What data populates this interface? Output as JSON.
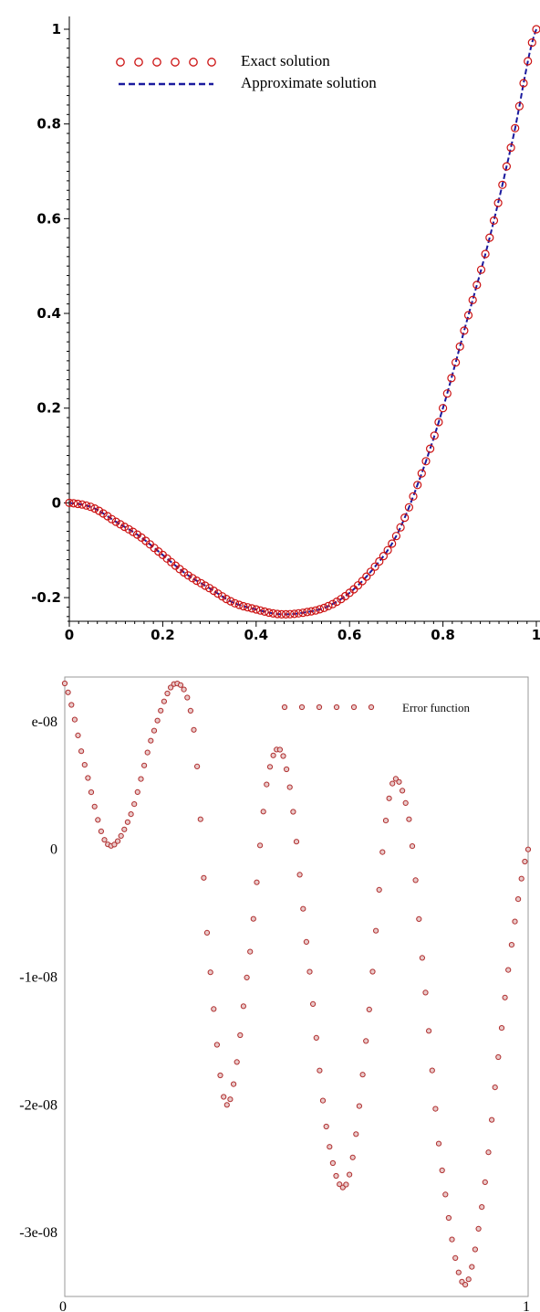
{
  "chart_data": [
    {
      "type": "line",
      "title": "",
      "xlabel": "",
      "ylabel": "",
      "xlim": [
        0,
        1
      ],
      "ylim": [
        -0.25,
        1
      ],
      "x_ticks": [
        "0",
        "0.2",
        "0.4",
        "0.6",
        "0.8",
        "1"
      ],
      "y_ticks": [
        "-0.2",
        "0",
        "0.2",
        "0.4",
        "0.6",
        "0.8",
        "1"
      ],
      "grid": false,
      "legend": "top-left",
      "series": [
        {
          "name": "Exact solution",
          "style": "circles",
          "color": "#cc1111",
          "x": [
            0,
            0.05,
            0.1,
            0.15,
            0.2,
            0.25,
            0.3,
            0.35,
            0.4,
            0.45,
            0.5,
            0.55,
            0.6,
            0.65,
            0.7,
            0.75,
            0.8,
            0.85,
            0.9,
            0.95,
            1.0
          ],
          "y": [
            0,
            -0.01,
            -0.04,
            -0.07,
            -0.11,
            -0.15,
            -0.18,
            -0.21,
            -0.225,
            -0.235,
            -0.232,
            -0.22,
            -0.19,
            -0.14,
            -0.07,
            0.05,
            0.2,
            0.38,
            0.56,
            0.77,
            1.0
          ]
        },
        {
          "name": "Approximate solution",
          "style": "dashed",
          "color": "#1a1a9e",
          "x": [
            0,
            0.05,
            0.1,
            0.15,
            0.2,
            0.25,
            0.3,
            0.35,
            0.4,
            0.45,
            0.5,
            0.55,
            0.6,
            0.65,
            0.7,
            0.75,
            0.8,
            0.85,
            0.9,
            0.95,
            1.0
          ],
          "y": [
            0,
            -0.01,
            -0.04,
            -0.07,
            -0.11,
            -0.15,
            -0.18,
            -0.21,
            -0.225,
            -0.235,
            -0.232,
            -0.22,
            -0.19,
            -0.14,
            -0.07,
            0.05,
            0.2,
            0.38,
            0.56,
            0.77,
            1.0
          ]
        }
      ]
    },
    {
      "type": "scatter",
      "title": "",
      "xlabel": "",
      "ylabel": "",
      "xlim": [
        0,
        1
      ],
      "ylim": [
        -3.5e-08,
        1.35e-08
      ],
      "x_ticks": [
        "0",
        "1"
      ],
      "y_ticks": [
        "e-08",
        "0",
        "-1e-08",
        "-2e-08",
        "-3e-08"
      ],
      "grid": false,
      "legend": "top-right",
      "series": [
        {
          "name": "Error function",
          "style": "circles",
          "color": "#b03030",
          "x": [
            0,
            0.04,
            0.09,
            0.14,
            0.19,
            0.24,
            0.28,
            0.31,
            0.35,
            0.4,
            0.44,
            0.48,
            0.53,
            0.57,
            0.61,
            0.65,
            0.7,
            0.74,
            0.77,
            0.81,
            0.86,
            0.9,
            0.94,
            0.97,
            1.0
          ],
          "y": [
            1.3e-08,
            7e-09,
            5e-10,
            2.5e-09,
            9e-09,
            1.3e-08,
            9e-09,
            -8e-09,
            -2e-08,
            -8e-09,
            6e-09,
            6e-09,
            -1e-08,
            -2.3e-08,
            -2.6e-08,
            -1.5e-08,
            4e-09,
            3e-09,
            -8e-09,
            -2.4e-08,
            -3.4e-08,
            -2.8e-08,
            -1.5e-08,
            -6e-09,
            0
          ]
        }
      ]
    }
  ]
}
